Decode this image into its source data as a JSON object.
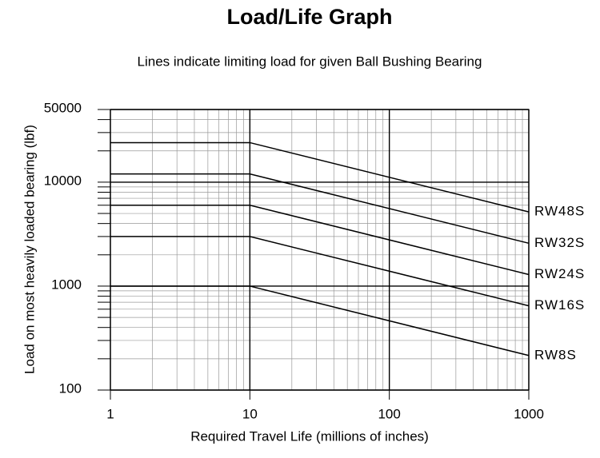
{
  "chart_data": {
    "type": "line",
    "title": "Load/Life Graph",
    "subtitle": "Lines indicate limiting load for given Ball Bushing Bearing",
    "x_label": "Required Travel Life (millions of inches)",
    "y_label": "Load on most heavily loaded bearing (lbf)",
    "x": [
      1,
      10,
      1000
    ],
    "series": [
      {
        "name": "RW48S",
        "color": "#000000",
        "values": [
          24000,
          24000,
          5170
        ]
      },
      {
        "name": "RW32S",
        "color": "#000000",
        "values": [
          12000,
          12000,
          2585
        ]
      },
      {
        "name": "RW24S",
        "color": "#000000",
        "values": [
          6000,
          6000,
          1292
        ]
      },
      {
        "name": "RW16S",
        "color": "#000000",
        "values": [
          3000,
          3000,
          646
        ]
      },
      {
        "name": "RW8S",
        "color": "#000000",
        "values": [
          1000,
          1000,
          215
        ]
      }
    ],
    "xlim": [
      1,
      1000
    ],
    "xticks": [
      1,
      10,
      100,
      1000
    ],
    "ylim": [
      100,
      50000
    ],
    "yticks": [
      100,
      1000,
      10000,
      50000
    ],
    "xscale": "log",
    "yscale": "log",
    "grid": true
  }
}
